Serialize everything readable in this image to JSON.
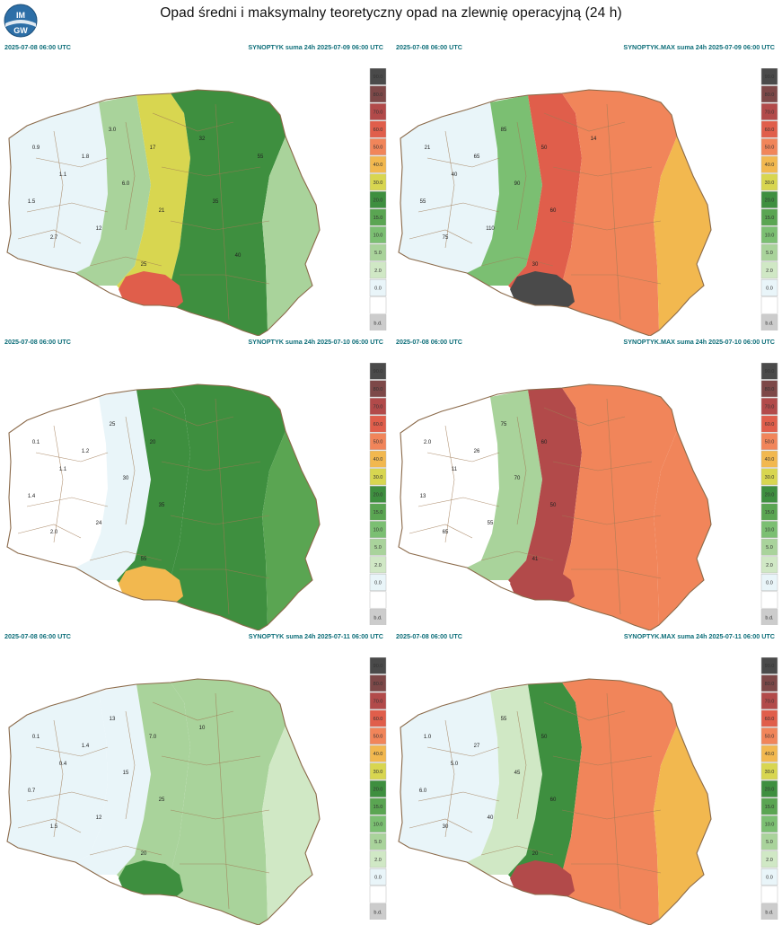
{
  "title": "Opad średni i maksymalny teoretyczny opad na zlewnię operacyjną (24 h)",
  "logo": {
    "letters": "IMGW"
  },
  "legend": {
    "levels": [
      {
        "label": "90.0",
        "color": "#4a4a4a"
      },
      {
        "label": "80.0",
        "color": "#7d4848"
      },
      {
        "label": "70.0",
        "color": "#b24a4a"
      },
      {
        "label": "60.0",
        "color": "#e05e4b"
      },
      {
        "label": "50.0",
        "color": "#f1855a"
      },
      {
        "label": "40.0",
        "color": "#f2b84f"
      },
      {
        "label": "30.0",
        "color": "#d8d650"
      },
      {
        "label": "20.0",
        "color": "#3e8f3f"
      },
      {
        "label": "15.0",
        "color": "#5aa552"
      },
      {
        "label": "10.0",
        "color": "#7bbf72"
      },
      {
        "label": "5.0",
        "color": "#a9d39b"
      },
      {
        "label": "2.0",
        "color": "#d0e8c5"
      },
      {
        "label": "0.0",
        "color": "#e9f5f9"
      },
      {
        "label": "",
        "color": "#ffffff"
      },
      {
        "label": "b.d.",
        "color": "#cccccc"
      }
    ]
  },
  "panels": [
    {
      "start": "2025-07-08 06:00 UTC",
      "product": "SYNOPTYK suma 24h 2025-07-09 06:00 UTC",
      "fills": {
        "west": "#e9f5f9",
        "center": "#a9d39b",
        "mid": "#d8d650",
        "east": "#3e8f3f",
        "far_east": "#a9d39b",
        "south": "#e05e4b"
      },
      "labels": [
        "0.9",
        "1.1",
        "1.5",
        "1.8",
        "2.7",
        "3.0",
        "6.0",
        "12",
        "17",
        "21",
        "25",
        "32",
        "35",
        "40",
        "55"
      ]
    },
    {
      "start": "2025-07-08 06:00 UTC",
      "product": "SYNOPTYK.MAX suma 24h 2025-07-09 06:00 UTC",
      "fills": {
        "west": "#e9f5f9",
        "center": "#7bbf72",
        "mid": "#e05e4b",
        "east": "#f1855a",
        "far_east": "#f2b84f",
        "south": "#4a4a4a"
      },
      "labels": [
        "21",
        "40",
        "55",
        "65",
        "75",
        "85",
        "90",
        "110",
        "50",
        "60",
        "30",
        "14"
      ]
    },
    {
      "start": "2025-07-08 06:00 UTC",
      "product": "SYNOPTYK suma 24h 2025-07-10 06:00 UTC",
      "fills": {
        "west": "#ffffff",
        "center": "#e9f5f9",
        "mid": "#3e8f3f",
        "east": "#3e8f3f",
        "far_east": "#5aa552",
        "south": "#f2b84f"
      },
      "labels": [
        "0.1",
        "1.1",
        "1.4",
        "1.2",
        "2.0",
        "25",
        "30",
        "24",
        "20",
        "35",
        "55"
      ]
    },
    {
      "start": "2025-07-08 06:00 UTC",
      "product": "SYNOPTYK.MAX suma 24h 2025-07-10 06:00 UTC",
      "fills": {
        "west": "#ffffff",
        "center": "#a9d39b",
        "mid": "#b24a4a",
        "east": "#f1855a",
        "far_east": "#f1855a",
        "south": "#b24a4a"
      },
      "labels": [
        "2.0",
        "11",
        "13",
        "26",
        "65",
        "75",
        "70",
        "55",
        "60",
        "50",
        "41"
      ]
    },
    {
      "start": "2025-07-08 06:00 UTC",
      "product": "SYNOPTYK suma 24h 2025-07-11 06:00 UTC",
      "fills": {
        "west": "#e9f5f9",
        "center": "#e9f5f9",
        "mid": "#a9d39b",
        "east": "#a9d39b",
        "far_east": "#d0e8c5",
        "south": "#3e8f3f"
      },
      "labels": [
        "0.1",
        "0.4",
        "0.7",
        "1.4",
        "1.5",
        "13",
        "15",
        "12",
        "7.0",
        "25",
        "20",
        "10"
      ]
    },
    {
      "start": "2025-07-08 06:00 UTC",
      "product": "SYNOPTYK.MAX suma 24h 2025-07-11 06:00 UTC",
      "fills": {
        "west": "#e9f5f9",
        "center": "#d0e8c5",
        "mid": "#3e8f3f",
        "east": "#f1855a",
        "far_east": "#f2b84f",
        "south": "#b24a4a"
      },
      "labels": [
        "1.0",
        "5.0",
        "6.0",
        "27",
        "30",
        "55",
        "45",
        "40",
        "50",
        "60",
        "20"
      ]
    }
  ]
}
